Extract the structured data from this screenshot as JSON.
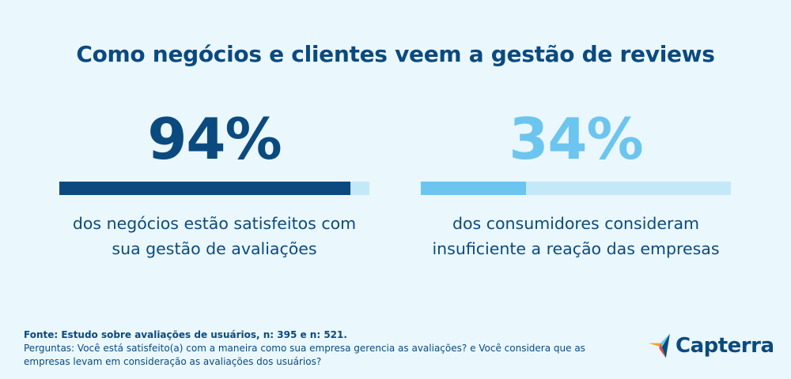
{
  "title": "Como negócios e clientes veem a gestão de reviews",
  "chart_data": [
    {
      "type": "bar",
      "value": 94,
      "max": 100,
      "label": "94%",
      "description_lines": [
        "dos negócios estão satisfeitos com",
        "sua gestão de avaliações"
      ],
      "color": "#0b4a7e",
      "track_color": "#c3e9f8"
    },
    {
      "type": "bar",
      "value": 34,
      "max": 100,
      "label": "34%",
      "description_lines": [
        "dos consumidores consideram",
        "insuficiente a reação das empresas"
      ],
      "color": "#6cc5ee",
      "track_color": "#c3e9f8"
    }
  ],
  "footer": {
    "source": "Fonte: Estudo sobre avaliações de usuários, n: 395 e n: 521.",
    "questions_line1": "Perguntas: Você está satisfeito(a) com a maneira como sua empresa gerencia as avaliações? e Você considera que as",
    "questions_line2": "empresas levam em consideração as avaliações dos usuários?"
  },
  "logo": {
    "text": "Capterra",
    "icon": "capterra-arrow-icon",
    "colors": [
      "#ff9d28",
      "#68c5ed",
      "#044d80",
      "#e54747"
    ]
  }
}
